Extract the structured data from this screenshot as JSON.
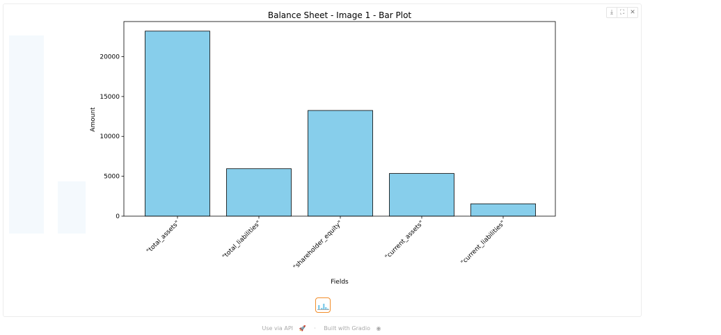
{
  "toolbar": {
    "download_icon": "download-icon",
    "fullscreen_icon": "fullscreen-icon",
    "close_icon": "close-icon"
  },
  "chart_data": {
    "type": "bar",
    "title": "Balance Sheet - Image 1 - Bar Plot",
    "xlabel": "Fields",
    "ylabel": "Amount",
    "categories": [
      "\"total_assets\"",
      "\"total_liabilities\"",
      "\"shareholder_equity\"",
      "\"current_assets\"",
      "\"current_liabilities\""
    ],
    "values": [
      23200,
      5950,
      13250,
      5350,
      1550
    ],
    "ylim": [
      0,
      24400
    ],
    "yticks": [
      0,
      5000,
      10000,
      15000,
      20000
    ],
    "bar_color": "#87ceeb",
    "edge_color": "#000000",
    "grid": false
  },
  "footer": {
    "api_label": "Use via API",
    "separator": "·",
    "built_label": "Built with Gradio"
  }
}
